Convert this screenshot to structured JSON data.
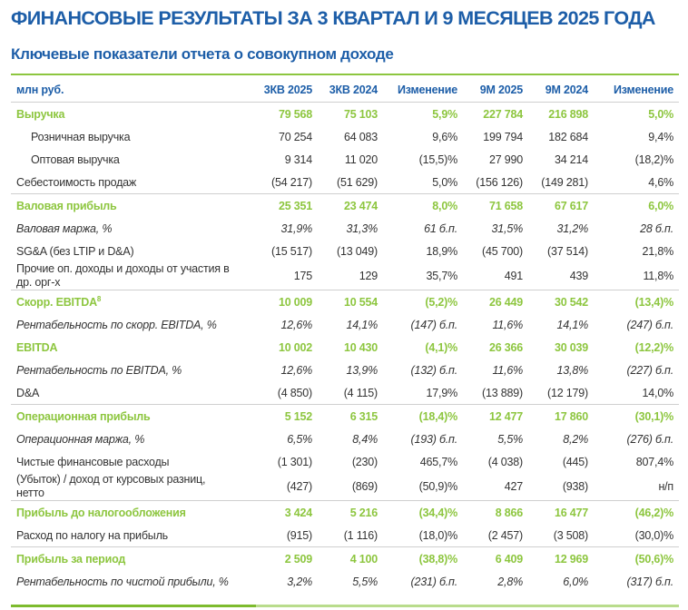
{
  "title": "ФИНАНСОВЫЕ РЕЗУЛЬТАТЫ ЗА 3 КВАРТАЛ И 9 МЕСЯЦЕВ 2025 ГОДА",
  "subtitle": "Ключевые показатели отчета о совокупном доходе",
  "colors": {
    "title": "#1d5ea8",
    "accent": "#8dc63f",
    "text": "#333333"
  },
  "header": [
    "млн руб.",
    "3КВ 2025",
    "3КВ 2024",
    "Изменение",
    "9М 2025",
    "9М 2024",
    "Изменение"
  ],
  "rows": [
    {
      "style": "main",
      "cells": [
        "Выручка",
        "79 568",
        "75 103",
        "5,9%",
        "227 784",
        "216 898",
        "5,0%"
      ]
    },
    {
      "style": "sub",
      "cells": [
        "Розничная выручка",
        "70 254",
        "64 083",
        "9,6%",
        "199 794",
        "182 684",
        "9,4%"
      ]
    },
    {
      "style": "sub",
      "cells": [
        "Оптовая выручка",
        "9 314",
        "11 020",
        "(15,5)%",
        "27 990",
        "34 214",
        "(18,2)%"
      ]
    },
    {
      "style": "normal bb",
      "cells": [
        "Себестоимость продаж",
        "(54 217)",
        "(51 629)",
        "5,0%",
        "(156 126)",
        "(149 281)",
        "4,6%"
      ]
    },
    {
      "style": "main",
      "cells": [
        "Валовая прибыль",
        "25 351",
        "23 474",
        "8,0%",
        "71 658",
        "67 617",
        "6,0%"
      ]
    },
    {
      "style": "italic",
      "cells": [
        "Валовая маржа, %",
        "31,9%",
        "31,3%",
        "61 б.п.",
        "31,5%",
        "31,2%",
        "28 б.п."
      ]
    },
    {
      "style": "normal",
      "cells": [
        "SG&A (без LTIP и D&A)",
        "(15 517)",
        "(13 049)",
        "18,9%",
        "(45 700)",
        "(37 514)",
        "21,8%"
      ]
    },
    {
      "style": "normal two bb",
      "cells": [
        "Прочие оп. доходы и доходы от участия в др. орг-х",
        "175",
        "129",
        "35,7%",
        "491",
        "439",
        "11,8%"
      ]
    },
    {
      "style": "main",
      "cells": [
        "Скорр. EBITDA",
        "10 009",
        "10 554",
        "(5,2)%",
        "26 449",
        "30 542",
        "(13,4)%"
      ],
      "footnote": "8"
    },
    {
      "style": "italic",
      "cells": [
        "Рентабельность по скорр. EBITDA, %",
        "12,6%",
        "14,1%",
        "(147) б.п.",
        "11,6%",
        "14,1%",
        "(247) б.п."
      ]
    },
    {
      "style": "main",
      "cells": [
        "EBITDA",
        "10 002",
        "10 430",
        "(4,1)%",
        "26 366",
        "30 039",
        "(12,2)%"
      ]
    },
    {
      "style": "italic",
      "cells": [
        "Рентабельность по EBITDA, %",
        "12,6%",
        "13,9%",
        "(132) б.п.",
        "11,6%",
        "13,8%",
        "(227) б.п."
      ]
    },
    {
      "style": "normal bb",
      "cells": [
        "D&A",
        "(4 850)",
        "(4 115)",
        "17,9%",
        "(13 889)",
        "(12 179)",
        "14,0%"
      ]
    },
    {
      "style": "main",
      "cells": [
        "Операционная прибыль",
        "5 152",
        "6 315",
        "(18,4)%",
        "12 477",
        "17 860",
        "(30,1)%"
      ]
    },
    {
      "style": "italic",
      "cells": [
        "Операционная маржа, %",
        "6,5%",
        "8,4%",
        "(193) б.п.",
        "5,5%",
        "8,2%",
        "(276) б.п."
      ]
    },
    {
      "style": "normal",
      "cells": [
        "Чистые финансовые расходы",
        "(1 301)",
        "(230)",
        "465,7%",
        "(4 038)",
        "(445)",
        "807,4%"
      ]
    },
    {
      "style": "normal two bb",
      "cells": [
        "(Убыток) / доход от курсовых разниц, нетто",
        "(427)",
        "(869)",
        "(50,9)%",
        "427",
        "(938)",
        "н/п"
      ]
    },
    {
      "style": "main",
      "cells": [
        "Прибыль до налогообложения",
        "3 424",
        "5 216",
        "(34,4)%",
        "8 866",
        "16 477",
        "(46,2)%"
      ]
    },
    {
      "style": "normal bb",
      "cells": [
        "Расход по налогу на прибыль",
        "(915)",
        "(1 116)",
        "(18,0)%",
        "(2 457)",
        "(3 508)",
        "(30,0)%"
      ]
    },
    {
      "style": "main",
      "cells": [
        "Прибыль за период",
        "2 509",
        "4 100",
        "(38,8)%",
        "6 409",
        "12 969",
        "(50,6)%"
      ]
    },
    {
      "style": "italic",
      "cells": [
        "Рентабельность по чистой прибыли, %",
        "3,2%",
        "5,5%",
        "(231) б.п.",
        "2,8%",
        "6,0%",
        "(317) б.п."
      ]
    }
  ]
}
